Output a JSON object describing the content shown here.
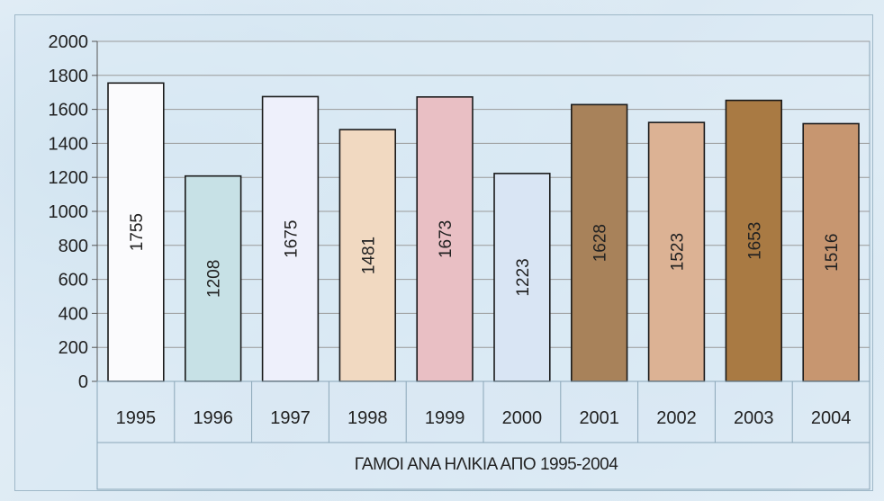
{
  "chart_data": {
    "type": "bar",
    "categories": [
      "1995",
      "1996",
      "1997",
      "1998",
      "1999",
      "2000",
      "2001",
      "2002",
      "2003",
      "2004"
    ],
    "values": [
      1755,
      1208,
      1675,
      1481,
      1673,
      1223,
      1628,
      1523,
      1653,
      1516
    ],
    "data_labels": [
      "1755",
      "1208",
      "1675",
      "1481",
      "1673",
      "1223",
      "1628",
      "1523",
      "1653",
      "1516"
    ],
    "y_ticks": [
      "0",
      "200",
      "400",
      "600",
      "800",
      "1000",
      "1200",
      "1400",
      "1600",
      "1800",
      "2000"
    ],
    "ylim": [
      0,
      2000
    ],
    "xlabel": "ΓΑΜΟΙ  ΑΝΑ ΗΛΙΚΙΑ ΑΠΟ 1995-2004",
    "ylabel": "",
    "grid": true,
    "bar_colors": [
      "#fbfbfd",
      "#c7e1e6",
      "#eef0fb",
      "#f1d9c1",
      "#e9bfc4",
      "#d9e5f4",
      "#a8825a",
      "#dcb294",
      "#a97a43",
      "#c79670"
    ],
    "bar_border_color": "#1a1a1a",
    "grid_color": "#9a9a9a"
  }
}
